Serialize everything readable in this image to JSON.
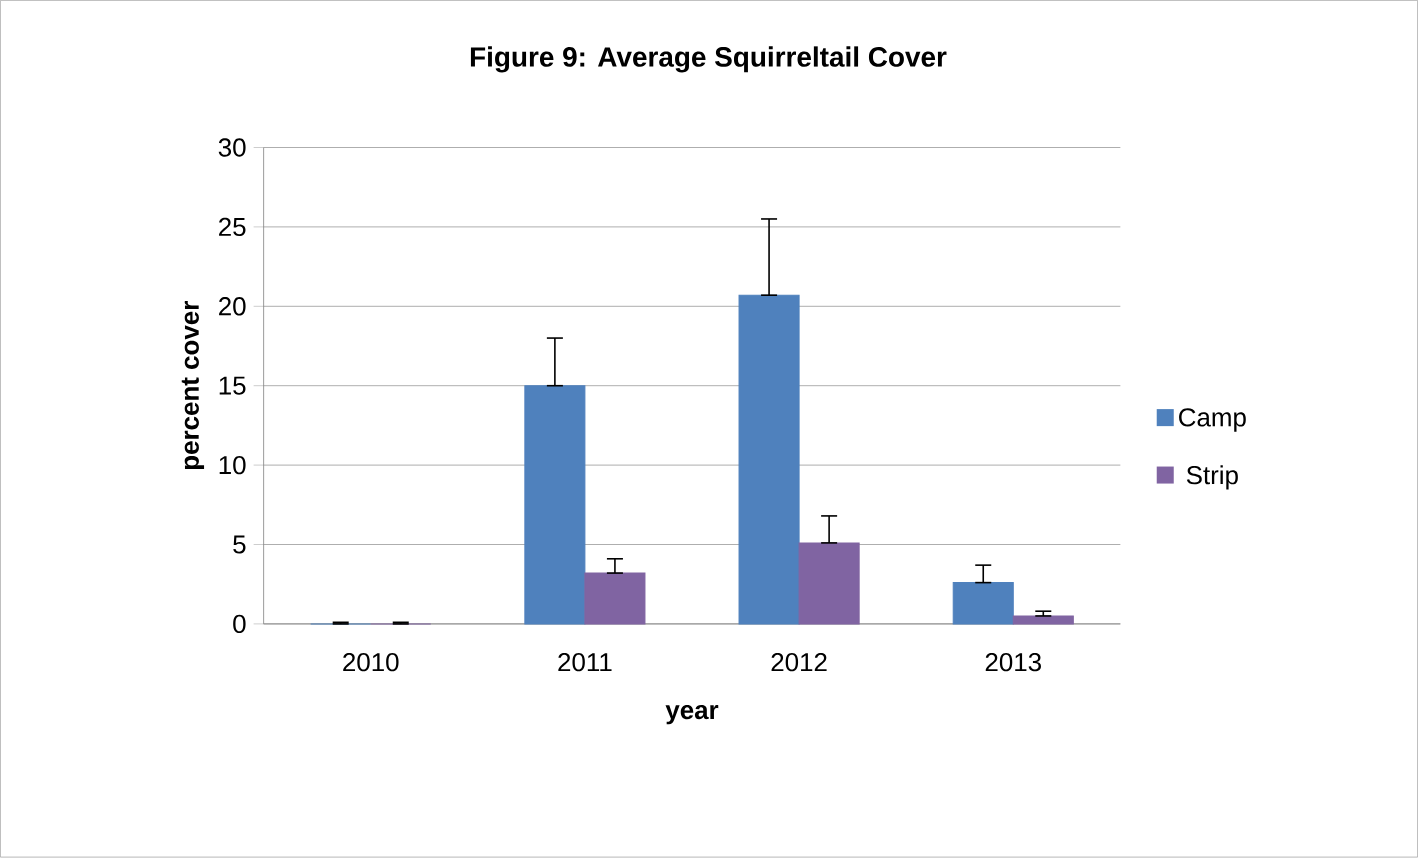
{
  "chart_data": {
    "type": "bar",
    "title": "Figure 9: Average Squirreltail Cover",
    "xlabel": "year",
    "ylabel": "percent cover",
    "categories": [
      "2010",
      "2011",
      "2012",
      "2013"
    ],
    "series": [
      {
        "name": "Camp",
        "color": "#4f81bd",
        "values": [
          0,
          15.0,
          20.7,
          2.6
        ],
        "errors": [
          [
            0,
            0.1
          ],
          [
            15.0,
            18.0
          ],
          [
            20.7,
            25.5
          ],
          [
            2.6,
            3.7
          ]
        ]
      },
      {
        "name": "Strip",
        "color": "#8064a2",
        "values": [
          0,
          3.2,
          5.1,
          0.5
        ],
        "errors": [
          [
            0,
            0.1
          ],
          [
            3.2,
            4.1
          ],
          [
            5.1,
            6.8
          ],
          [
            0.5,
            0.8
          ]
        ]
      }
    ],
    "ylim": [
      0,
      30
    ],
    "yticks": [
      0,
      5,
      10,
      15,
      20,
      25,
      30
    ],
    "grid": "y",
    "legend": "right"
  }
}
